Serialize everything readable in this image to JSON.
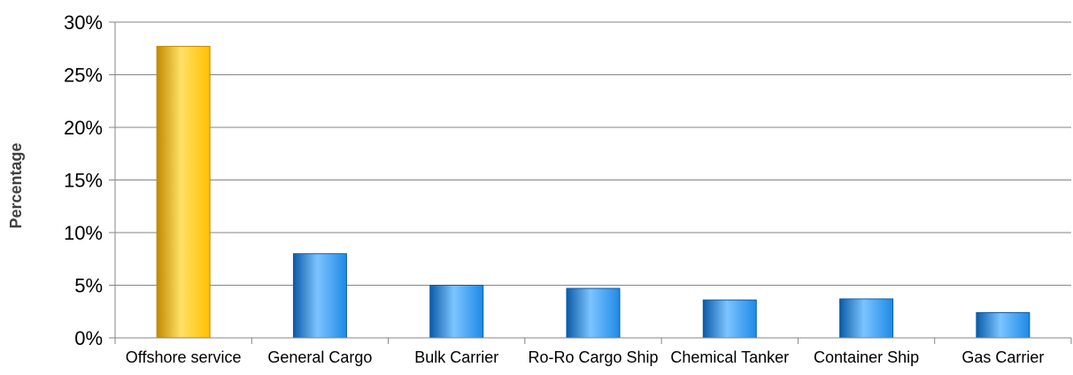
{
  "chart_data": {
    "type": "bar",
    "title": "",
    "xlabel": "",
    "ylabel": "Percentage",
    "categories": [
      "Offshore service",
      "General Cargo",
      "Bulk Carrier",
      "Ro-Ro Cargo Ship",
      "Chemical Tanker",
      "Container Ship",
      "Gas Carrier"
    ],
    "values": [
      27.7,
      8.0,
      5.0,
      4.7,
      3.6,
      3.7,
      2.4
    ],
    "ylim": [
      0,
      30
    ],
    "yticks": [
      0,
      5,
      10,
      15,
      20,
      25,
      30
    ],
    "ytick_labels": [
      "0%",
      "5%",
      "10%",
      "15%",
      "20%",
      "25%",
      "30%"
    ],
    "grid": true,
    "legend": "none",
    "colors": {
      "highlight": "#FFC000",
      "highlight_light": "#FFE066",
      "highlight_dark": "#C08A00",
      "default": "#1E8AE6",
      "default_light": "#7CC4FF",
      "default_dark": "#0B5BA8",
      "gridline": "#868686",
      "axis": "#868686"
    },
    "highlight_index": 0
  }
}
